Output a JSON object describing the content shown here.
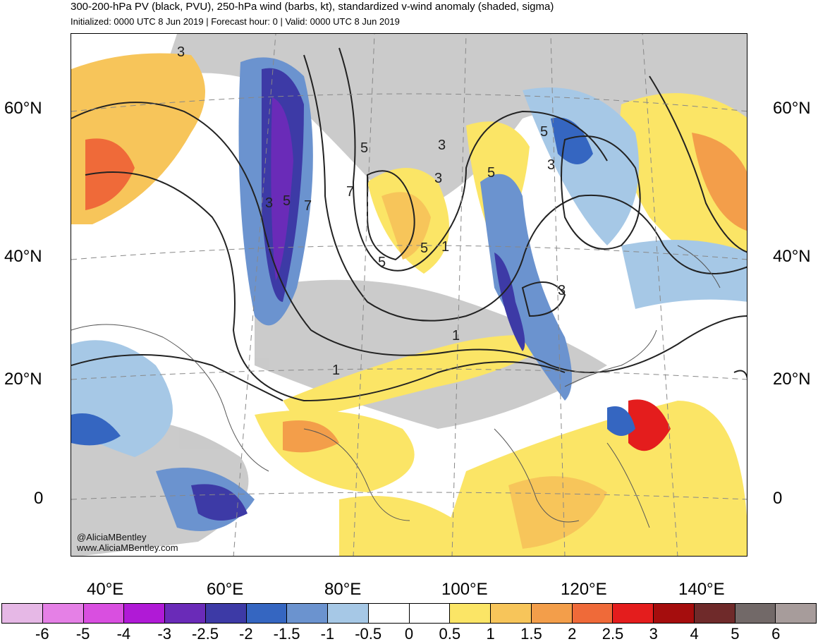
{
  "header": {
    "title": "300-200-hPa PV (black, PVU), 250-hPa wind (barbs, kt), standardized v-wind anomaly (shaded, sigma)",
    "subtitle": "Initialized: 0000 UTC 8 Jun 2019 | Forecast hour: 0 | Valid: 0000 UTC 8 Jun 2019"
  },
  "map": {
    "lat_labels_left": [
      "60°N",
      "40°N",
      "20°N",
      "0"
    ],
    "lat_labels_right": [
      "60°N",
      "40°N",
      "20°N",
      "0"
    ],
    "lon_labels": [
      "40°E",
      "60°E",
      "80°E",
      "100°E",
      "120°E",
      "140°E"
    ],
    "contour_labels": [
      "3",
      "5",
      "3",
      "7",
      "5",
      "7",
      "5",
      "1",
      "5",
      "3",
      "5",
      "3",
      "5",
      "3",
      "3",
      "1",
      "1"
    ],
    "watermark": {
      "handle": "@AliciaMBentley",
      "site": "www.AliciaMBentley.com"
    }
  },
  "colorbar": {
    "colors": [
      "#e6b8e6",
      "#e580e6",
      "#d94fe0",
      "#b01ad6",
      "#6a2bb8",
      "#3d3aa6",
      "#3566c1",
      "#6b93cf",
      "#a6c8e6",
      "#ffffff",
      "#ffffff",
      "#fbe566",
      "#f7c55a",
      "#f39e4a",
      "#ef6a39",
      "#e41d1d",
      "#a50d0d",
      "#6f2a2a",
      "#726968",
      "#a79c9b"
    ],
    "labels": [
      "-6",
      "-5",
      "-4",
      "-3",
      "-2.5",
      "-2",
      "-1.5",
      "-1",
      "-0.5",
      "0",
      "0.5",
      "1",
      "1.5",
      "2",
      "2.5",
      "3",
      "4",
      "5",
      "6"
    ]
  }
}
